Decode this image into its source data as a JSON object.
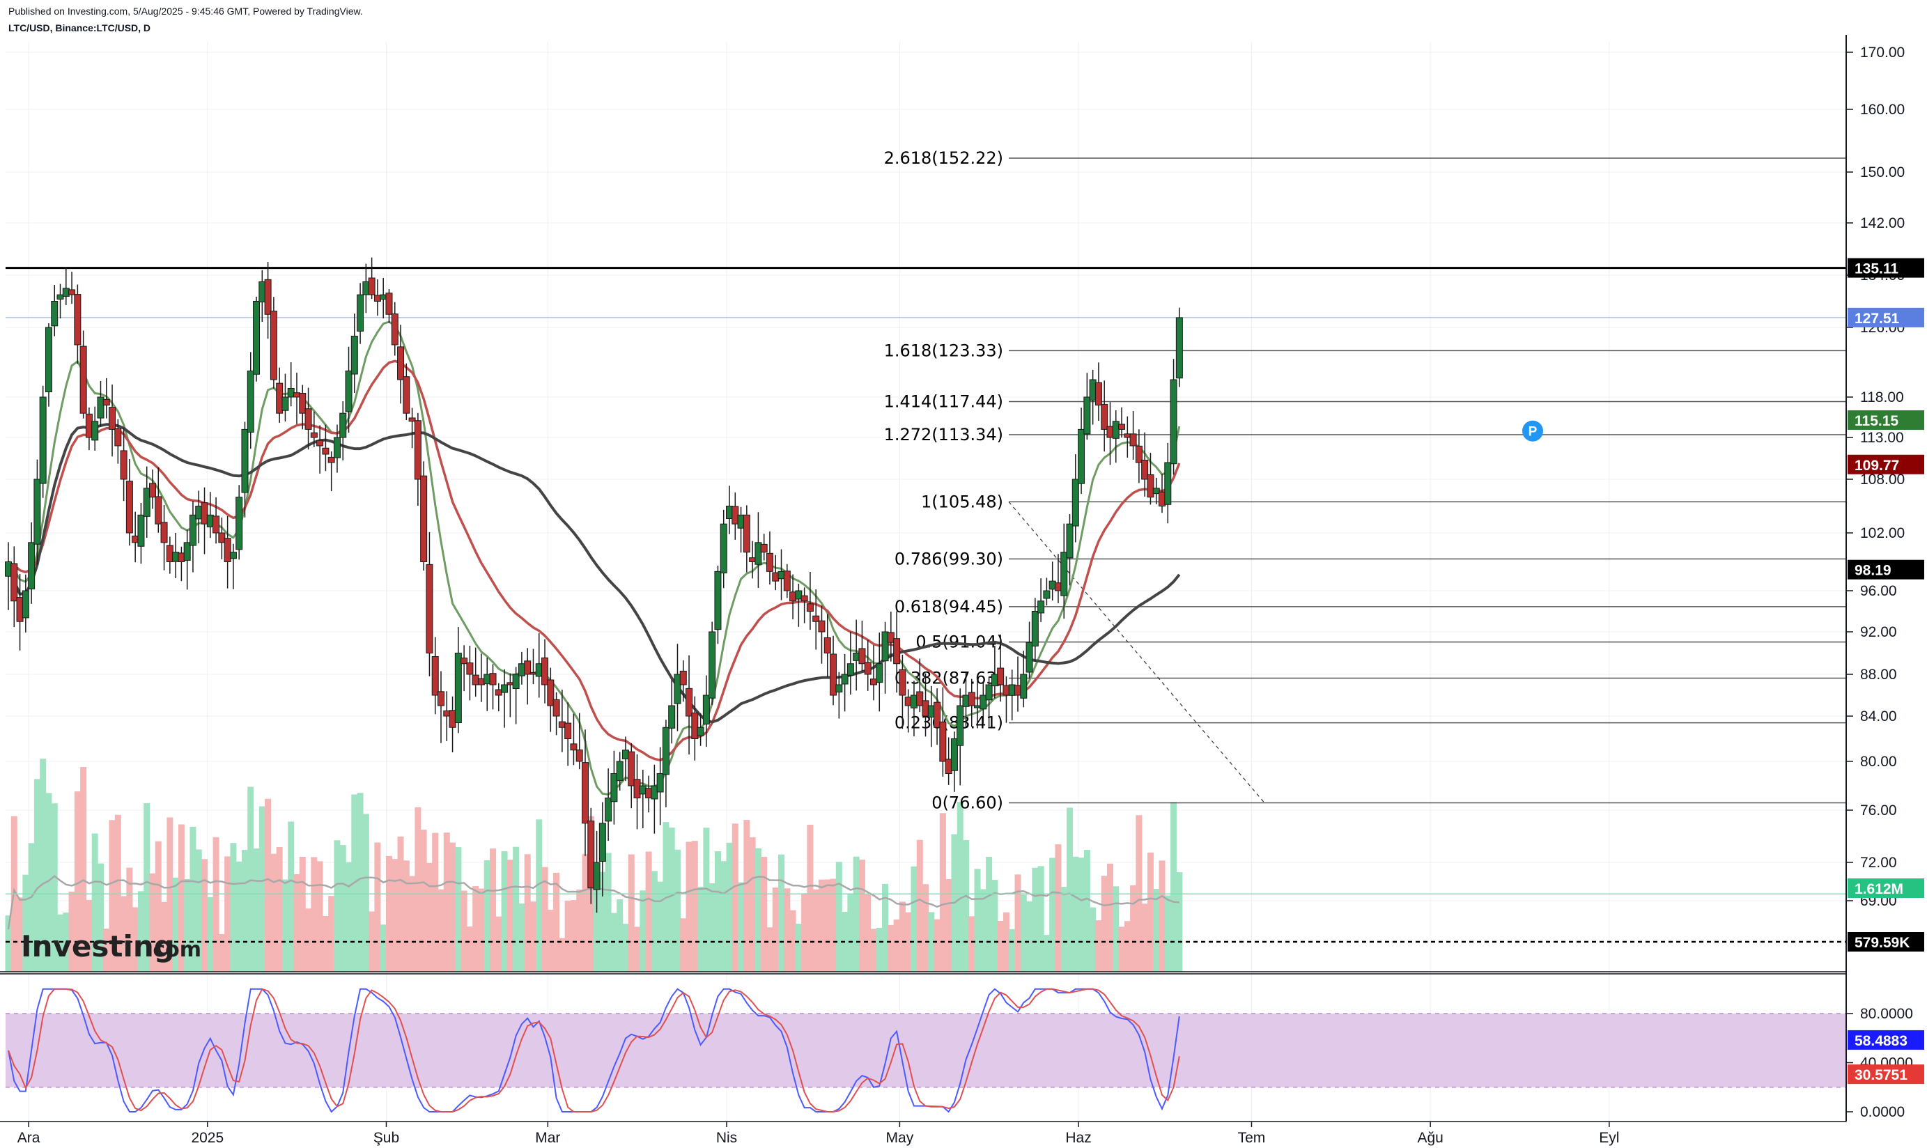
{
  "header": {
    "published": "Published on Investing.com, 5/Aug/2025 - 9:45:46 GMT, Powered by TradingView.",
    "symbol": "LTC/USD, Binance:LTC/USD, D"
  },
  "brand": {
    "name": "Investing",
    "suffix": ".com"
  },
  "chart_data": {
    "type": "candlestick",
    "price_axis": {
      "ticks": [
        170,
        160,
        150,
        142,
        134,
        126,
        118,
        113,
        108,
        102,
        96,
        92,
        88,
        84,
        80,
        76,
        72,
        69
      ],
      "tick_labels": [
        "170.00",
        "160.00",
        "150.00",
        "142.00",
        "134.00",
        "126.00",
        "118.00",
        "113.00",
        "108.00",
        "102.00",
        "96.00",
        "92.00",
        "88.00",
        "84.00",
        "80.00",
        "76.00",
        "72.00",
        "69.00"
      ]
    },
    "stoch_axis": {
      "ticks": [
        80,
        40,
        0
      ],
      "tick_labels": [
        "80.0000",
        "40.0000",
        "0.0000"
      ],
      "band": [
        20,
        80
      ]
    },
    "x_axis": {
      "labels": [
        "Ara",
        "2025",
        "Şub",
        "Mar",
        "Nis",
        "May",
        "Haz",
        "Tem",
        "Ağu",
        "Eyl"
      ],
      "label_dates": [
        "2024-12-01",
        "2025-01-01",
        "2025-02-01",
        "2025-03-01",
        "2025-04-01",
        "2025-05-01",
        "2025-06-01",
        "2025-07-01",
        "2025-08-01",
        "2025-09-01"
      ]
    },
    "fibonacci": [
      {
        "label": "2.618(152.22)",
        "price": 152.22
      },
      {
        "label": "1.618(123.33)",
        "price": 123.33
      },
      {
        "label": "1.414(117.44)",
        "price": 117.44
      },
      {
        "label": "1.272(113.34)",
        "price": 113.34
      },
      {
        "label": "1(105.48)",
        "price": 105.48
      },
      {
        "label": "0.786(99.30)",
        "price": 99.3
      },
      {
        "label": "0.618(94.45)",
        "price": 94.45
      },
      {
        "label": "0.5(91.04)",
        "price": 91.04
      },
      {
        "label": "0.382(87.63)",
        "price": 87.63
      },
      {
        "label": "0.236(83.41)",
        "price": 83.41
      },
      {
        "label": "0(76.60)",
        "price": 76.6
      }
    ],
    "price_tags": [
      {
        "label": "135.11",
        "value": 135.11,
        "color": "#000000"
      },
      {
        "label": "127.51",
        "value": 127.51,
        "color": "#5b7fe0"
      },
      {
        "label": "115.15",
        "value": 115.15,
        "color": "#2e7d32"
      },
      {
        "label": "109.77",
        "value": 109.77,
        "color": "#8b0000"
      },
      {
        "label": "98.19",
        "value": 98.19,
        "color": "#000000"
      }
    ],
    "volume_tags": [
      {
        "label": "1.612M",
        "value": 1612000,
        "color": "#26c281"
      },
      {
        "label": "579.59K",
        "value": 579590,
        "color": "#000000"
      }
    ],
    "stoch_tags": [
      {
        "label": "58.4883",
        "value": 58.4883,
        "color": "#1a1aff"
      },
      {
        "label": "30.5751",
        "value": 30.5751,
        "color": "#e53935"
      }
    ],
    "resistance": 135.11,
    "last_price": 127.51,
    "marker": "P",
    "closes": [
      99,
      95,
      93,
      96,
      101,
      108,
      118,
      126,
      130,
      131,
      132,
      131,
      124,
      116,
      113,
      115,
      118,
      117,
      114,
      112,
      108,
      102,
      101,
      104,
      107,
      106,
      103,
      101,
      99,
      100,
      99,
      101,
      104,
      105,
      103,
      104,
      102,
      101,
      99,
      100,
      106,
      114,
      121,
      130,
      133,
      128,
      120,
      116,
      118,
      119,
      118,
      116,
      114,
      113,
      112,
      111,
      110,
      113,
      116,
      121,
      125,
      131,
      133,
      131,
      130,
      131,
      128,
      124,
      120,
      116,
      115,
      108,
      99,
      90,
      86,
      85,
      84,
      83,
      90,
      89,
      88,
      87,
      87,
      88,
      87,
      86,
      87,
      87,
      88,
      89,
      88,
      88,
      89,
      87,
      85,
      84,
      83,
      82,
      81,
      80,
      75,
      70,
      72,
      75,
      77,
      79,
      80,
      81,
      78,
      77,
      78,
      77,
      78,
      79,
      83,
      85,
      88,
      87,
      84,
      82,
      83,
      86,
      92,
      98,
      103,
      105,
      103,
      104,
      100,
      99,
      101,
      100,
      98,
      97,
      98,
      96,
      95,
      96,
      95,
      94,
      93,
      92,
      90,
      86,
      87,
      88,
      89,
      90,
      89,
      88,
      87,
      89,
      92,
      91,
      89,
      86,
      85,
      86,
      85,
      84,
      85,
      83,
      80,
      79,
      82,
      85,
      86,
      85,
      85,
      86,
      87,
      88,
      87,
      86,
      87,
      86,
      88,
      91,
      94,
      95,
      96,
      97,
      96,
      100,
      103,
      108,
      114,
      118,
      120,
      117,
      114,
      113,
      115,
      114,
      113,
      112,
      110,
      108,
      106,
      107,
      105,
      110,
      120,
      127.5
    ]
  }
}
